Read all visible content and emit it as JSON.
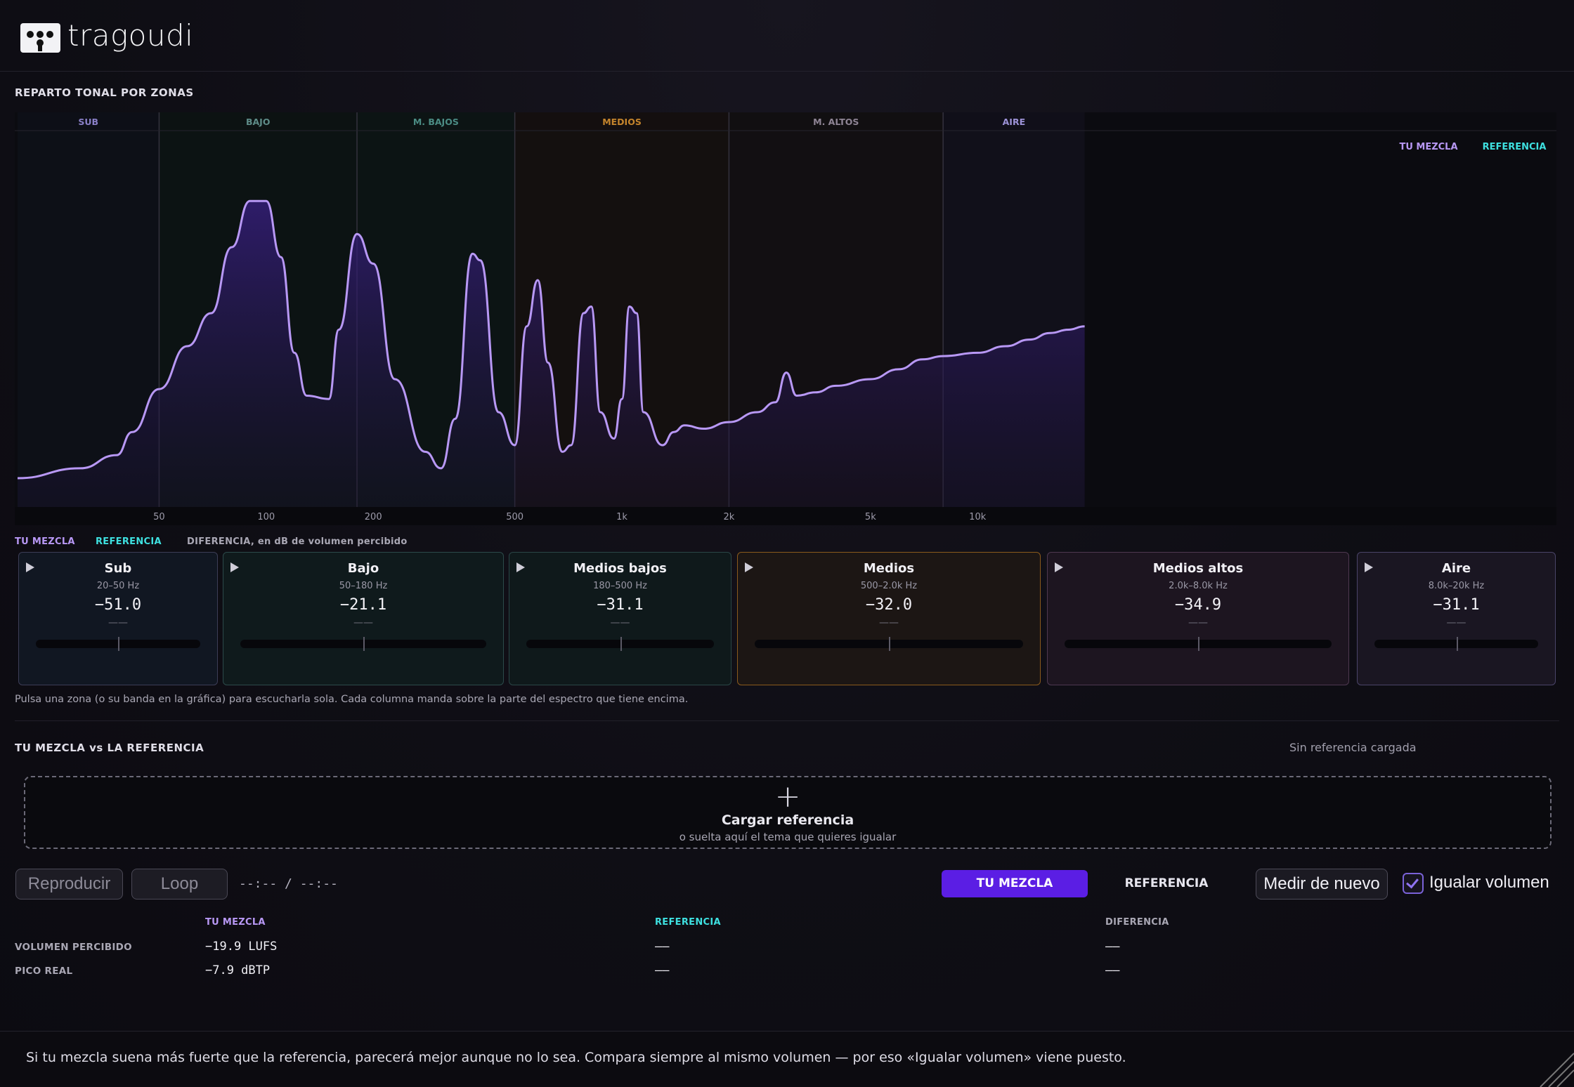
{
  "app": {
    "name": "tragoudi"
  },
  "spectrum": {
    "title": "REPARTO TONAL POR ZONAS",
    "zone_headers": [
      "SUB",
      "BAJO",
      "M. BAJOS",
      "MEDIOS",
      "M. ALTOS",
      "AIRE"
    ],
    "legend_mix": "TU MEZCLA",
    "legend_ref": "REFERENCIA",
    "x_ticks": [
      "50",
      "100",
      "200",
      "500",
      "1k",
      "2k",
      "5k",
      "10k"
    ]
  },
  "chart_data": {
    "type": "area",
    "xscale": "log",
    "xlim": [
      20,
      20000
    ],
    "x_tick_labels": [
      "50",
      "100",
      "200",
      "500",
      "1k",
      "2k",
      "5k",
      "10k"
    ],
    "zones": [
      {
        "name": "SUB",
        "range_hz": [
          20,
          50
        ]
      },
      {
        "name": "BAJO",
        "range_hz": [
          50,
          180
        ]
      },
      {
        "name": "M. BAJOS",
        "range_hz": [
          180,
          500
        ]
      },
      {
        "name": "MEDIOS",
        "range_hz": [
          500,
          2000
        ]
      },
      {
        "name": "M. ALTOS",
        "range_hz": [
          2000,
          8000
        ]
      },
      {
        "name": "AIRE",
        "range_hz": [
          8000,
          20000
        ]
      }
    ],
    "series": [
      {
        "name": "TU MEZCLA",
        "points": [
          [
            20,
            10
          ],
          [
            30,
            13
          ],
          [
            38,
            17
          ],
          [
            42,
            24
          ],
          [
            50,
            37
          ],
          [
            60,
            50
          ],
          [
            70,
            60
          ],
          [
            80,
            80
          ],
          [
            90,
            94
          ],
          [
            100,
            94
          ],
          [
            110,
            77
          ],
          [
            120,
            48
          ],
          [
            130,
            35
          ],
          [
            150,
            34
          ],
          [
            160,
            55
          ],
          [
            180,
            84
          ],
          [
            200,
            75
          ],
          [
            230,
            40
          ],
          [
            280,
            18
          ],
          [
            310,
            13
          ],
          [
            340,
            28
          ],
          [
            380,
            78
          ],
          [
            400,
            76
          ],
          [
            450,
            30
          ],
          [
            500,
            20
          ],
          [
            540,
            56
          ],
          [
            580,
            70
          ],
          [
            620,
            45
          ],
          [
            680,
            18
          ],
          [
            720,
            20
          ],
          [
            780,
            60
          ],
          [
            820,
            62
          ],
          [
            870,
            30
          ],
          [
            950,
            22
          ],
          [
            1000,
            34
          ],
          [
            1050,
            62
          ],
          [
            1100,
            60
          ],
          [
            1150,
            30
          ],
          [
            1300,
            20
          ],
          [
            1400,
            24
          ],
          [
            1500,
            26
          ],
          [
            1700,
            25
          ],
          [
            2000,
            27
          ],
          [
            2400,
            30
          ],
          [
            2700,
            33
          ],
          [
            2900,
            42
          ],
          [
            3100,
            35
          ],
          [
            3500,
            36
          ],
          [
            4000,
            38
          ],
          [
            5000,
            40
          ],
          [
            6000,
            43
          ],
          [
            7000,
            46
          ],
          [
            8000,
            47
          ],
          [
            10000,
            48
          ],
          [
            12000,
            50
          ],
          [
            14000,
            52
          ],
          [
            16000,
            54
          ],
          [
            18000,
            55
          ],
          [
            20000,
            56
          ]
        ]
      },
      {
        "name": "REFERENCIA",
        "points": []
      }
    ]
  },
  "zones_legend": {
    "mix": "TU MEZCLA",
    "ref": "REFERENCIA",
    "diff": "DIFERENCIA, en dB de volumen percibido"
  },
  "zones": [
    {
      "name": "Sub",
      "range": "20–50 Hz",
      "value": "−51.0",
      "diff": "——",
      "level": 0.5,
      "color": "#3c3d56"
    },
    {
      "name": "Bajo",
      "range": "50–180 Hz",
      "value": "−21.1",
      "diff": "——",
      "level": 0.5,
      "color": "#2c4a4a"
    },
    {
      "name": "Medios bajos",
      "range": "180–500 Hz",
      "value": "−31.1",
      "diff": "——",
      "level": 0.5,
      "color": "#2a4646"
    },
    {
      "name": "Medios",
      "range": "500–2.0k Hz",
      "value": "−32.0",
      "diff": "——",
      "level": 0.5,
      "color": "#8a5a1c"
    },
    {
      "name": "Medios altos",
      "range": "2.0k–8.0k Hz",
      "value": "−34.9",
      "diff": "——",
      "level": 0.5,
      "color": "#4e3850"
    },
    {
      "name": "Aire",
      "range": "8.0k–20k Hz",
      "value": "−31.1",
      "diff": "——",
      "level": 0.5,
      "color": "#4a4468"
    }
  ],
  "hint": "Pulsa una zona (o su banda en la gráfica) para escucharla sola. Cada columna manda sobre la parte del espectro que tiene encima.",
  "compare": {
    "title": "TU MEZCLA vs LA REFERENCIA",
    "status": "Sin referencia cargada",
    "dropzone_icon": "plus-icon",
    "dropzone_title": "Cargar referencia",
    "dropzone_sub": "o suelta aquí el tema que quieres igualar",
    "play_label": "Reproducir",
    "loop_label": "Loop",
    "time": "--:-- / --:--",
    "toggle_mix": "TU MEZCLA",
    "toggle_ref": "REFERENCIA",
    "measure_label": "Medir de nuevo",
    "match_label": "Igualar volumen",
    "match_checked": true
  },
  "table": {
    "headers": [
      "TU MEZCLA",
      "REFERENCIA",
      "DIFERENCIA"
    ],
    "rows": [
      {
        "label": "VOLUMEN PERCIBIDO",
        "mix": "−19.9 LUFS",
        "ref": "——",
        "diff": "——"
      },
      {
        "label": "PICO REAL",
        "mix": "−7.9 dBTP",
        "ref": "——",
        "diff": "——"
      }
    ]
  },
  "footer": "Si tu mezcla suena más fuerte que la referencia, parecerá mejor aunque no lo sea. Compara siempre al mismo volumen — por eso «Igualar volumen» viene puesto.",
  "colors": {
    "mix": "#b898f5",
    "ref": "#3ee0e0",
    "accent": "#5b1ee4",
    "medios": "#c5852c"
  }
}
